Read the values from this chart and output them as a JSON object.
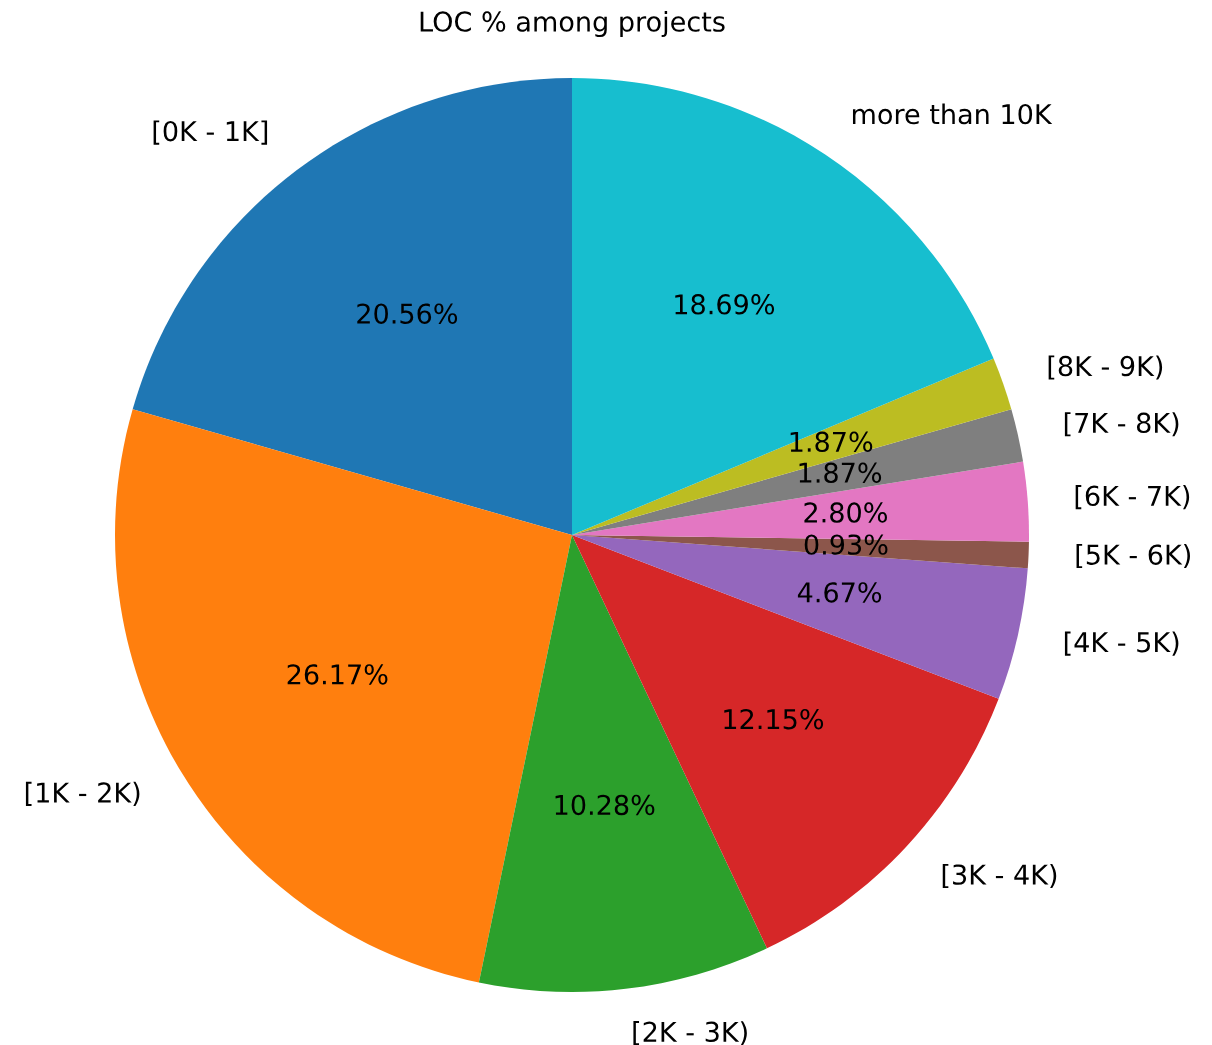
{
  "chart_data": {
    "type": "pie",
    "title": "LOC % among projects",
    "categories": [
      "[0K - 1K]",
      "[1K - 2K)",
      "[2K - 3K)",
      "[3K - 4K)",
      "[4K - 5K)",
      "[5K - 6K)",
      "[6K - 7K)",
      "[7K - 8K)",
      "[8K - 9K)",
      "more than 10K"
    ],
    "values": [
      20.56,
      26.17,
      10.28,
      12.15,
      4.67,
      0.93,
      2.8,
      1.87,
      1.87,
      18.69
    ],
    "value_labels": [
      "20.56%",
      "26.17%",
      "10.28%",
      "12.15%",
      "4.67%",
      "0.93%",
      "2.80%",
      "1.87%",
      "1.87%",
      "18.69%"
    ],
    "colors": [
      "#1f77b4",
      "#ff7f0e",
      "#2ca02c",
      "#d62728",
      "#9467bd",
      "#8c564b",
      "#e377c2",
      "#7f7f7f",
      "#bcbd22",
      "#17becf"
    ]
  }
}
